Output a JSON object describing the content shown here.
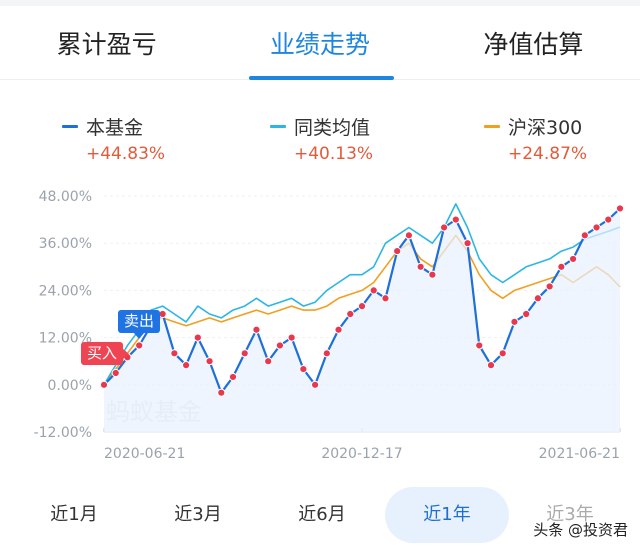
{
  "tabs": [
    {
      "label": "累计盈亏",
      "active": false
    },
    {
      "label": "业绩走势",
      "active": true
    },
    {
      "label": "净值估算",
      "active": false
    }
  ],
  "legend": [
    {
      "name": "本基金",
      "pct": "+44.83%",
      "color": "#1e6fd9"
    },
    {
      "name": "同类均值",
      "pct": "+40.13%",
      "color": "#2cb6e6"
    },
    {
      "name": "沪深300",
      "pct": "+24.87%",
      "color": "#f0a020"
    }
  ],
  "markers": {
    "sell": "卖出",
    "buy": "买入"
  },
  "watermark": "蚂蚁基金",
  "ranges": [
    {
      "label": "近1月",
      "active": false
    },
    {
      "label": "近3月",
      "active": false
    },
    {
      "label": "近6月",
      "active": false
    },
    {
      "label": "近1年",
      "active": true
    },
    {
      "label": "近3年",
      "active": false
    }
  ],
  "footer": "头条 @投资君",
  "chart_data": {
    "type": "line",
    "y_ticks": [
      "48.00%",
      "36.00%",
      "24.00%",
      "12.00%",
      "0.00%",
      "-12.00%"
    ],
    "ylim": [
      -12,
      48
    ],
    "x_ticks": [
      "2020-06-21",
      "2020-12-17",
      "2021-06-21"
    ],
    "series": [
      {
        "name": "本基金",
        "color": "#1e6fd9",
        "values": [
          0,
          3,
          7,
          10,
          15,
          18,
          8,
          5,
          12,
          6,
          -2,
          2,
          8,
          14,
          6,
          10,
          12,
          4,
          0,
          8,
          14,
          18,
          20,
          24,
          22,
          34,
          38,
          30,
          28,
          40,
          42,
          36,
          10,
          5,
          8,
          16,
          18,
          22,
          25,
          30,
          32,
          38,
          40,
          42,
          44.83
        ]
      },
      {
        "name": "同类均值",
        "color": "#2cb6e6",
        "values": [
          0,
          5,
          10,
          14,
          19,
          20,
          18,
          16,
          20,
          18,
          17,
          19,
          20,
          22,
          20,
          21,
          22,
          20,
          21,
          24,
          26,
          28,
          28,
          30,
          36,
          38,
          40,
          38,
          36,
          40,
          46,
          40,
          32,
          28,
          26,
          28,
          30,
          31,
          32,
          34,
          35,
          37,
          38,
          39,
          40.13
        ]
      },
      {
        "name": "沪深300",
        "color": "#f0a020",
        "values": [
          0,
          4,
          8,
          12,
          16,
          17,
          16,
          15,
          16,
          17,
          16,
          17,
          18,
          19,
          18,
          19,
          20,
          19,
          19,
          20,
          22,
          23,
          24,
          26,
          30,
          34,
          36,
          32,
          30,
          34,
          38,
          34,
          28,
          24,
          22,
          24,
          25,
          26,
          27,
          28,
          26,
          28,
          30,
          28,
          24.87
        ]
      }
    ]
  }
}
